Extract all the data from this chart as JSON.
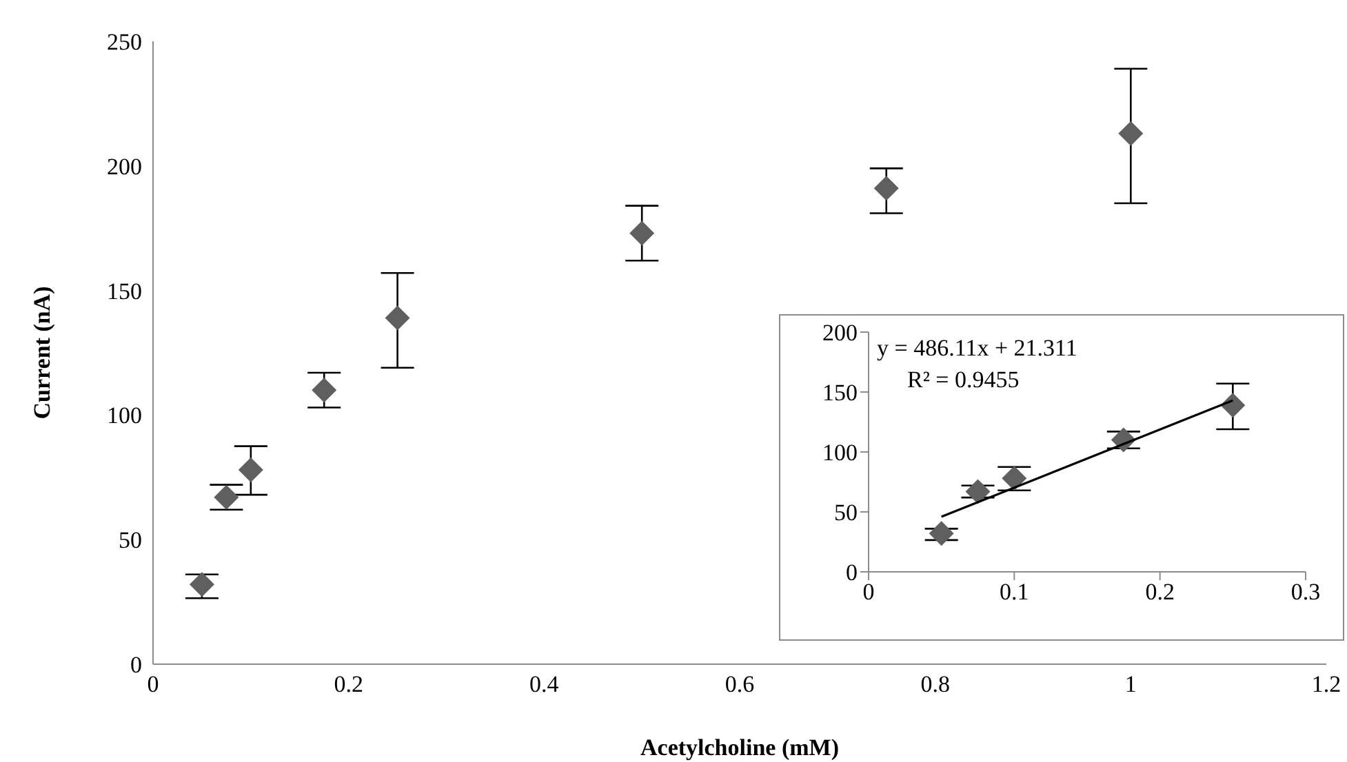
{
  "chart_data": [
    {
      "type": "scatter",
      "xlabel": "Acetylcholine (mM)",
      "ylabel": "Current (nA)",
      "x": [
        0.05,
        0.075,
        0.1,
        0.175,
        0.25,
        0.5,
        0.75,
        1.0
      ],
      "xlim": [
        0,
        1.2
      ],
      "xticks": [
        0,
        0.2,
        0.4,
        0.6,
        0.8,
        1,
        1.2
      ],
      "ylim": [
        0,
        250
      ],
      "yticks": [
        0,
        50,
        100,
        150,
        200,
        250
      ],
      "marker": "diamond",
      "series": [
        {
          "color": "#5f5f5f",
          "values": [
            32,
            67,
            78,
            110,
            139,
            173,
            191,
            213
          ],
          "errors": [
            [
              26.5,
              36
            ],
            [
              62,
              72
            ],
            [
              68,
              87.5
            ],
            [
              103,
              117
            ],
            [
              119,
              157
            ],
            [
              162,
              184
            ],
            [
              181,
              199
            ],
            [
              185,
              239
            ]
          ]
        }
      ]
    },
    {
      "type": "scatter",
      "x": [
        0.05,
        0.075,
        0.1,
        0.175,
        0.25
      ],
      "xlim": [
        0,
        0.3
      ],
      "xticks": [
        0,
        0.1,
        0.2,
        0.3
      ],
      "ylim": [
        0,
        200
      ],
      "yticks": [
        0,
        50,
        100,
        150,
        200
      ],
      "marker": "diamond",
      "annotations": [
        "y = 486.11x + 21.311",
        "R² = 0.9455"
      ],
      "series": [
        {
          "color": "#5f5f5f",
          "values": [
            32,
            67,
            78,
            110,
            139
          ],
          "errors": [
            [
              26.5,
              36
            ],
            [
              62,
              72
            ],
            [
              68,
              87.5
            ],
            [
              103,
              117
            ],
            [
              119,
              157
            ]
          ]
        },
        {
          "type": "line",
          "color": "#000000",
          "marker": "none",
          "x": [
            0.05,
            0.25
          ],
          "values": [
            46,
            143
          ]
        }
      ]
    }
  ]
}
